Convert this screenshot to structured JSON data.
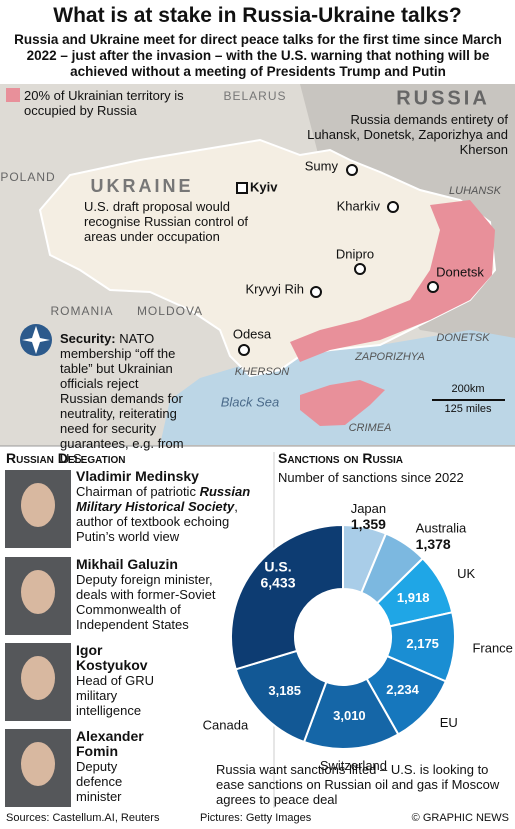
{
  "header": {
    "title": "What is at stake in Russia-Ukraine talks?",
    "subtitle": "Russia and Ukraine meet for direct peace talks for the first time since March 2022 – just after the invasion – with the U.S. warning that nothing will be achieved without a meeting of Presidents Trump and Putin"
  },
  "map": {
    "legend": "20% of Ukrainian territory is occupied by Russia",
    "countries": [
      "BELARUS",
      "RUSSIA",
      "POLAND",
      "UKRAINE",
      "ROMANIA",
      "MOLDOVA"
    ],
    "sea": "Black Sea",
    "cities": [
      "Kyiv",
      "Sumy",
      "Kharkiv",
      "Dnipro",
      "Donetsk",
      "Kryvyi Rih",
      "Odesa"
    ],
    "regions": [
      "LUHANSK",
      "DONETSK",
      "ZAPORIZHYA",
      "KHERSON",
      "CRIMEA"
    ],
    "annotations": {
      "russia_demands": "Russia demands entirety of Luhansk, Donetsk, Zaporizhya and Kherson",
      "us_proposal": "U.S. draft proposal would recognise Russian control of areas under occupation",
      "security": {
        "label": "Security:",
        "text": "NATO membership “off the table” but Ukrainian officials reject Russian demands for neutrality, reiterating need for security guarantees, e.g. from U.S."
      }
    },
    "scale": [
      "200km",
      "125 miles"
    ]
  },
  "delegation": {
    "heading": "Russian Delegation",
    "members": [
      {
        "name": "Vladimir Medinsky",
        "description": [
          "Chairman of patriotic ",
          "Russian Military Historical Society",
          ", author of textbook echoing Putin’s world view"
        ]
      },
      {
        "name": "Mikhail Galuzin",
        "description": [
          "Deputy foreign minister, deals with former-Soviet Commonwealth of Independent States"
        ]
      },
      {
        "name": "Igor Kostyukov",
        "description": [
          "Head of GRU military intelligence"
        ]
      },
      {
        "name": "Alexander Fomin",
        "description": [
          "Deputy defence minister"
        ]
      }
    ]
  },
  "chart_data": {
    "type": "pie",
    "donut": true,
    "title": "Sanctions on Russia",
    "subtitle": "Number of sanctions since 2022",
    "categories": [
      "Japan",
      "Australia",
      "UK",
      "France",
      "EU",
      "Switzerland",
      "Canada",
      "U.S."
    ],
    "values": [
      1359,
      1378,
      1918,
      2175,
      2234,
      3010,
      3185,
      6433
    ],
    "value_labels": [
      "1,359",
      "1,378",
      "1,918",
      "2,175",
      "2,234",
      "3,010",
      "3,185",
      "6,433"
    ],
    "colors": [
      "#a9cde8",
      "#7cb8e0",
      "#1fa6e6",
      "#1a8ed3",
      "#1677bd",
      "#1566a7",
      "#125895",
      "#0d3c72"
    ],
    "note": "Russia want sanctions lifted – U.S. is looking to ease sanctions on Russian oil and gas if Moscow agrees to peace deal"
  },
  "footer": {
    "sources": "Sources: Castellum.AI, Reuters",
    "pictures": "Pictures: Getty Images",
    "credit": "© GRAPHIC NEWS"
  }
}
